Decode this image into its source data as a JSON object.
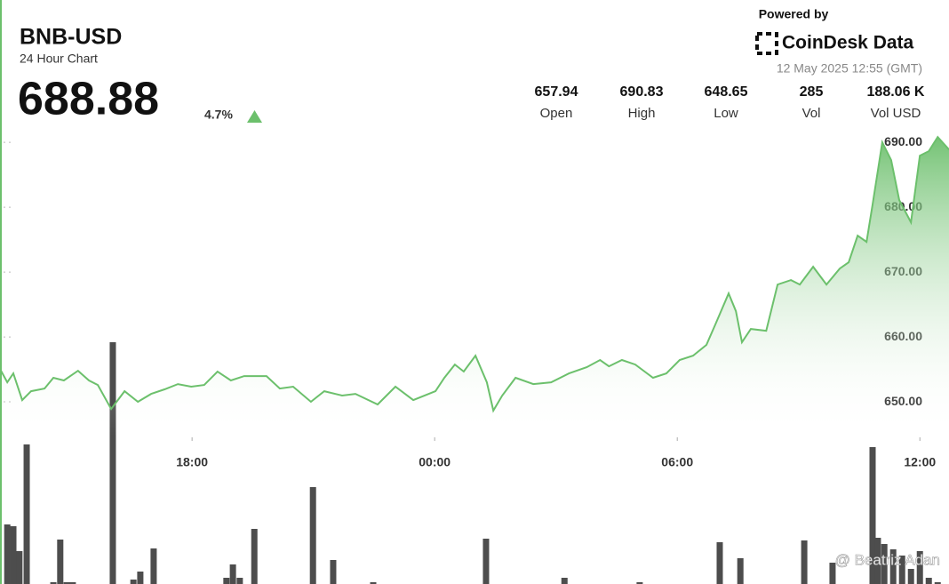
{
  "header": {
    "symbol": "BNB-USD",
    "subtitle": "24 Hour Chart",
    "price": "688.88",
    "change": "4.7%",
    "powered_by": "Powered by",
    "brand": "CoinDesk Data",
    "timestamp": "12 May 2025 12:55 (GMT)",
    "stats": [
      {
        "value": "657.94",
        "label": "Open"
      },
      {
        "value": "690.83",
        "label": "High"
      },
      {
        "value": "648.65",
        "label": "Low"
      },
      {
        "value": "285",
        "label": "Vol"
      },
      {
        "value": "188.06 K",
        "label": "Vol USD"
      }
    ],
    "watermark": "@ Beatriz Adan"
  },
  "chart_data": {
    "type": "line",
    "area": true,
    "color": "#6cc06c",
    "x": [
      13.25,
      13.43,
      13.58,
      13.8,
      14.02,
      14.35,
      14.57,
      14.83,
      15.18,
      15.45,
      15.67,
      16.0,
      16.33,
      16.66,
      16.99,
      17.32,
      17.65,
      17.98,
      18.3,
      18.63,
      18.96,
      19.29,
      19.84,
      20.17,
      20.5,
      20.94,
      21.27,
      21.71,
      22.04,
      22.59,
      23.03,
      23.47,
      24.02,
      24.24,
      24.5,
      24.72,
      25.01,
      25.29,
      25.45,
      25.67,
      26.0,
      26.44,
      26.88,
      27.32,
      27.76,
      28.09,
      28.31,
      28.63,
      28.96,
      29.4,
      29.73,
      30.06,
      30.39,
      30.72,
      30.94,
      31.27,
      31.45,
      31.6,
      31.82,
      32.2,
      32.48,
      32.81,
      33.03,
      33.36,
      33.69,
      34.02,
      34.24,
      34.46,
      34.68,
      34.83,
      35.07,
      35.29,
      35.49,
      35.78,
      36.0,
      36.22,
      36.44,
      36.72
    ],
    "values": [
      655.07,
      653.01,
      654.38,
      650.27,
      651.64,
      652.05,
      653.7,
      653.29,
      654.79,
      653.29,
      652.6,
      648.9,
      651.64,
      650.0,
      651.23,
      651.92,
      652.74,
      652.33,
      652.6,
      654.66,
      653.29,
      653.97,
      653.97,
      652.05,
      652.33,
      650.0,
      651.64,
      650.96,
      651.23,
      649.59,
      652.33,
      650.27,
      651.64,
      653.7,
      655.75,
      654.66,
      657.12,
      653.01,
      648.65,
      650.96,
      653.7,
      652.74,
      653.01,
      654.38,
      655.34,
      656.44,
      655.48,
      656.44,
      655.75,
      653.7,
      654.38,
      656.44,
      657.12,
      658.77,
      661.92,
      666.71,
      663.97,
      659.18,
      661.23,
      660.96,
      668.08,
      668.77,
      668.08,
      670.82,
      668.08,
      670.55,
      671.51,
      675.62,
      674.66,
      680.41,
      690.0,
      687.26,
      681.1,
      677.67,
      687.95,
      688.63,
      690.83,
      688.88
    ],
    "xlim": [
      13.25,
      36.72
    ],
    "xticks": [
      {
        "value": 18,
        "label": "18:00"
      },
      {
        "value": 24,
        "label": "00:00"
      },
      {
        "value": 30,
        "label": "06:00"
      },
      {
        "value": 36,
        "label": "12:00"
      }
    ],
    "ylim": [
      644.8,
      690.7
    ],
    "yticks": [
      {
        "value": 650,
        "label": "650.00"
      },
      {
        "value": 660,
        "label": "660.00"
      },
      {
        "value": 670,
        "label": "670.00"
      },
      {
        "value": 680,
        "label": "680.00"
      },
      {
        "value": 690,
        "label": "690.00"
      }
    ],
    "volume": {
      "color": "#4d4d4d",
      "ylim": [
        0,
        300
      ],
      "x": [
        13.43,
        13.58,
        13.73,
        13.91,
        14.57,
        14.74,
        14.9,
        15.05,
        16.04,
        16.55,
        16.72,
        17.05,
        18.85,
        19.01,
        19.18,
        19.54,
        20.99,
        21.49,
        22.48,
        25.27,
        27.21,
        29.07,
        31.05,
        31.56,
        33.14,
        33.84,
        34.83,
        34.96,
        35.12,
        35.34,
        35.56,
        35.78,
        36.0,
        36.22,
        36.44
      ],
      "values": [
        67,
        65,
        37,
        157,
        2,
        50,
        2,
        2,
        272,
        5,
        14,
        40,
        7,
        22,
        7,
        62,
        109,
        27,
        2,
        51,
        7,
        2,
        47,
        29,
        49,
        24,
        154,
        52,
        45,
        39,
        32,
        17,
        37,
        7,
        2
      ]
    }
  }
}
